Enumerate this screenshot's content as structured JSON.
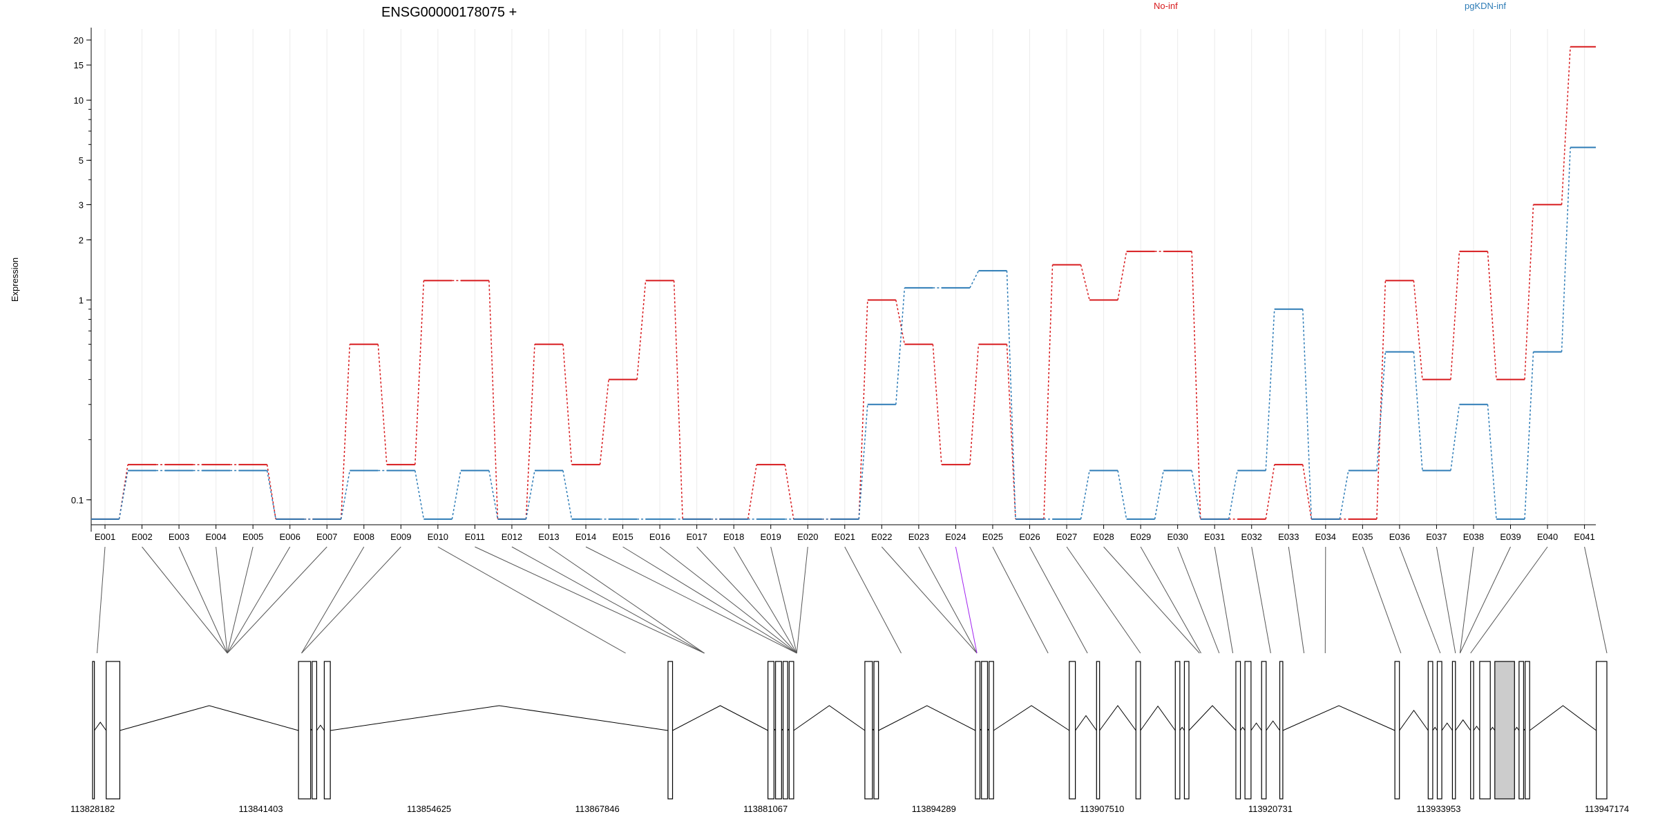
{
  "chart_data": {
    "type": "line",
    "title": "ENSG00000178075 +",
    "ylabel": "Expression",
    "yscale": "log",
    "ylim": [
      0.075,
      22
    ],
    "yticks": [
      0.1,
      1,
      2,
      3,
      5,
      10,
      15,
      20
    ],
    "categories": [
      "E001",
      "E002",
      "E003",
      "E004",
      "E005",
      "E006",
      "E007",
      "E008",
      "E009",
      "E010",
      "E011",
      "E012",
      "E013",
      "E014",
      "E015",
      "E016",
      "E017",
      "E018",
      "E019",
      "E020",
      "E021",
      "E022",
      "E023",
      "E024",
      "E025",
      "E026",
      "E027",
      "E028",
      "E029",
      "E030",
      "E031",
      "E032",
      "E033",
      "E034",
      "E035",
      "E036",
      "E037",
      "E038",
      "E039",
      "E040",
      "E041"
    ],
    "series": [
      {
        "name": "No-inf",
        "color": "#d7191c",
        "values": [
          0.08,
          0.15,
          0.15,
          0.15,
          0.15,
          0.08,
          0.08,
          0.6,
          0.15,
          1.25,
          1.25,
          0.08,
          0.6,
          0.15,
          0.4,
          1.25,
          0.08,
          0.08,
          0.15,
          0.08,
          0.08,
          1.0,
          0.6,
          0.15,
          0.6,
          0.08,
          1.5,
          1.0,
          1.75,
          1.75,
          0.08,
          0.08,
          0.15,
          0.08,
          0.08,
          1.25,
          0.4,
          1.75,
          0.4,
          3.0,
          18.5
        ]
      },
      {
        "name": "pgKDN-inf",
        "color": "#2c7bb6",
        "values": [
          0.08,
          0.14,
          0.14,
          0.14,
          0.14,
          0.08,
          0.08,
          0.14,
          0.14,
          0.08,
          0.14,
          0.08,
          0.14,
          0.08,
          0.08,
          0.08,
          0.08,
          0.08,
          0.08,
          0.08,
          0.08,
          0.3,
          1.15,
          1.15,
          1.4,
          0.08,
          0.08,
          0.14,
          0.08,
          0.14,
          0.08,
          0.14,
          0.9,
          0.08,
          0.14,
          0.55,
          0.14,
          0.3,
          0.08,
          0.55,
          5.8
        ]
      }
    ],
    "exon_link_color_highlight": "#a020f0",
    "gene_model": {
      "coordinate_labels": [
        "113828182",
        "113841403",
        "113854625",
        "113867846",
        "113881067",
        "113894289",
        "113907510",
        "113920731",
        "113933953",
        "113947174"
      ],
      "exons": [
        [
          0.0,
          0.12
        ],
        [
          0.9,
          1.8
        ],
        [
          13.6,
          14.4
        ],
        [
          14.5,
          14.8
        ],
        [
          15.3,
          15.7
        ],
        [
          38.0,
          38.3
        ],
        [
          44.6,
          45.0
        ],
        [
          45.1,
          45.5
        ],
        [
          45.6,
          45.9
        ],
        [
          46.0,
          46.3
        ],
        [
          51.0,
          51.5
        ],
        [
          51.6,
          51.9
        ],
        [
          58.3,
          58.6
        ],
        [
          58.7,
          59.1
        ],
        [
          59.2,
          59.5
        ],
        [
          64.5,
          64.9
        ],
        [
          66.3,
          66.5
        ],
        [
          68.9,
          69.2
        ],
        [
          71.5,
          71.8
        ],
        [
          72.1,
          72.4
        ],
        [
          75.5,
          75.8
        ],
        [
          76.1,
          76.5
        ],
        [
          77.2,
          77.5
        ],
        [
          78.4,
          78.6
        ],
        [
          86.0,
          86.3
        ],
        [
          88.2,
          88.5
        ],
        [
          88.8,
          89.1
        ],
        [
          89.8,
          90.0
        ],
        [
          91.0,
          91.2
        ],
        [
          91.6,
          92.3
        ],
        [
          92.6,
          93.9
        ],
        [
          94.2,
          94.5
        ],
        [
          94.6,
          94.9
        ],
        [
          99.3,
          100.0
        ]
      ],
      "link_targets": [
        0.3,
        8.9,
        8.9,
        8.9,
        8.9,
        8.9,
        8.9,
        13.8,
        13.8,
        35.2,
        40.4,
        40.4,
        40.4,
        46.5,
        46.5,
        46.5,
        46.5,
        46.5,
        46.5,
        46.5,
        53.4,
        58.4,
        58.4,
        58.4,
        63.1,
        65.7,
        69.2,
        73.1,
        73.2,
        74.4,
        75.3,
        77.8,
        80.0,
        81.4,
        86.4,
        89.0,
        90.0,
        90.3,
        90.3,
        91.0,
        100.0
      ]
    }
  },
  "legend": {
    "no_inf": "No-inf",
    "pgkdn_inf": "pgKDN-inf"
  }
}
